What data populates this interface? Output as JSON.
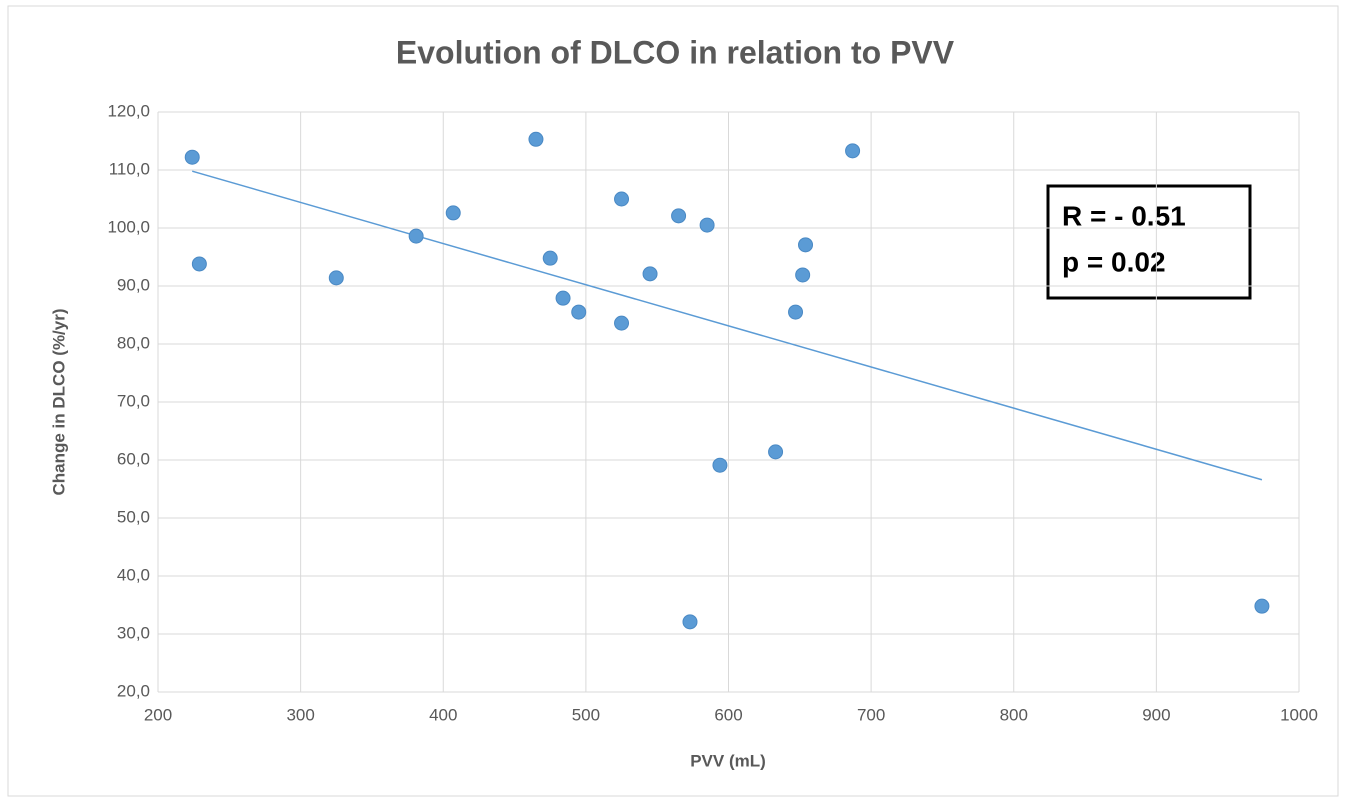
{
  "chart_data": {
    "type": "scatter",
    "title": "Evolution of DLCO in relation to PVV",
    "x_label": "PVV (mL)",
    "y_label": "Change in DLCO (%/yr)",
    "series": [
      {
        "color": "#5b9bd5",
        "x": [
          224,
          229,
          325,
          381,
          407,
          465,
          475,
          484,
          495,
          525,
          525,
          545,
          565,
          585,
          573,
          594,
          633,
          647,
          652,
          654,
          687,
          974
        ],
        "values": [
          112.2,
          93.8,
          91.4,
          98.6,
          102.6,
          115.3,
          94.8,
          87.9,
          85.5,
          105.0,
          83.6,
          92.1,
          102.1,
          100.5,
          32.1,
          59.1,
          61.4,
          85.5,
          91.9,
          97.1,
          113.3,
          34.8
        ]
      }
    ],
    "trendline": {
      "color": "#5b9bd5",
      "x": [
        224,
        974
      ],
      "values": [
        109.8,
        56.6
      ]
    },
    "annotations": [
      "R = - 0.51",
      "p = 0.02"
    ],
    "xlim": [
      200,
      1000
    ],
    "xticks": [
      200,
      300,
      400,
      500,
      600,
      700,
      800,
      900,
      1000
    ],
    "ylim": [
      20,
      120
    ],
    "yticks": [
      {
        "value": 20,
        "label": "20,0"
      },
      {
        "value": 30,
        "label": "30,0"
      },
      {
        "value": 40,
        "label": "40,0"
      },
      {
        "value": 50,
        "label": "50,0"
      },
      {
        "value": 60,
        "label": "60,0"
      },
      {
        "value": 70,
        "label": "70,0"
      },
      {
        "value": 80,
        "label": "80,0"
      },
      {
        "value": 90,
        "label": "90,0"
      },
      {
        "value": 100,
        "label": "100,0"
      },
      {
        "value": 110,
        "label": "110,0"
      },
      {
        "value": 120,
        "label": "120,0"
      }
    ],
    "grid": true
  }
}
